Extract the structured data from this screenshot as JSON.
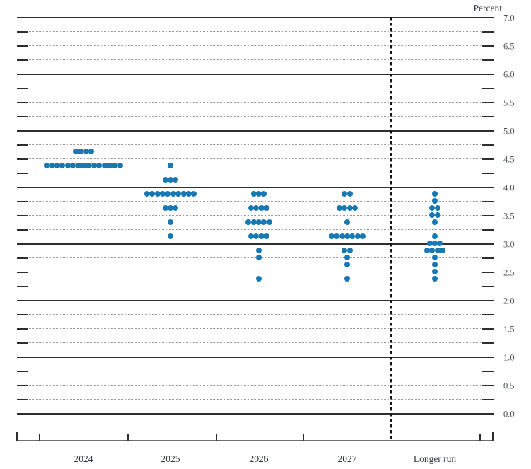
{
  "header": {
    "unit_label": "Percent"
  },
  "colors": {
    "dot": "#1878b4",
    "solid_gridline": "#2e2e2e",
    "dotted_gridline": "#9b9b9b",
    "axis_line": "#6f6f6f",
    "separator": "#151515",
    "y_label_text": "#4d565e",
    "x_label_text": "#323b42"
  },
  "chart_data": {
    "type": "scatter",
    "title": "",
    "ylabel": "Percent",
    "xlabel": "",
    "ylim": [
      0.0,
      7.0
    ],
    "y_grid_step": 0.25,
    "y_major_step": 1.0,
    "y_label_step": 0.5,
    "grid": true,
    "legend": false,
    "categories": [
      "2024",
      "2025",
      "2026",
      "2027",
      "Longer run"
    ],
    "y_axis_labels": [
      "7.0",
      "6.5",
      "6.0",
      "5.5",
      "5.0",
      "4.5",
      "4.0",
      "3.5",
      "3.0",
      "2.5",
      "2.0",
      "1.5",
      "1.0",
      "0.5",
      "0.0"
    ],
    "separator_before_category": "Longer run",
    "series": [
      {
        "category": "2024",
        "dots": [
          {
            "value": 4.625,
            "count": 4
          },
          {
            "value": 4.375,
            "count": 15
          }
        ]
      },
      {
        "category": "2025",
        "dots": [
          {
            "value": 4.375,
            "count": 1
          },
          {
            "value": 4.125,
            "count": 3
          },
          {
            "value": 3.875,
            "count": 10
          },
          {
            "value": 3.625,
            "count": 3
          },
          {
            "value": 3.375,
            "count": 1
          },
          {
            "value": 3.125,
            "count": 1
          }
        ]
      },
      {
        "category": "2026",
        "dots": [
          {
            "value": 3.875,
            "count": 3
          },
          {
            "value": 3.625,
            "count": 4
          },
          {
            "value": 3.375,
            "count": 5
          },
          {
            "value": 3.125,
            "count": 4
          },
          {
            "value": 2.875,
            "count": 1
          },
          {
            "value": 2.75,
            "count": 1
          },
          {
            "value": 2.375,
            "count": 1
          }
        ]
      },
      {
        "category": "2027",
        "dots": [
          {
            "value": 3.875,
            "count": 2
          },
          {
            "value": 3.625,
            "count": 4
          },
          {
            "value": 3.375,
            "count": 1
          },
          {
            "value": 3.125,
            "count": 7
          },
          {
            "value": 2.875,
            "count": 2
          },
          {
            "value": 2.75,
            "count": 1
          },
          {
            "value": 2.625,
            "count": 1
          },
          {
            "value": 2.375,
            "count": 1
          }
        ]
      },
      {
        "category": "Longer run",
        "dots": [
          {
            "value": 3.875,
            "count": 1
          },
          {
            "value": 3.75,
            "count": 1
          },
          {
            "value": 3.625,
            "count": 2
          },
          {
            "value": 3.5,
            "count": 2
          },
          {
            "value": 3.375,
            "count": 1
          },
          {
            "value": 3.125,
            "count": 1
          },
          {
            "value": 3.0,
            "count": 3
          },
          {
            "value": 2.875,
            "count": 4
          },
          {
            "value": 2.75,
            "count": 1
          },
          {
            "value": 2.625,
            "count": 1
          },
          {
            "value": 2.5,
            "count": 1
          },
          {
            "value": 2.375,
            "count": 1
          }
        ]
      }
    ]
  }
}
